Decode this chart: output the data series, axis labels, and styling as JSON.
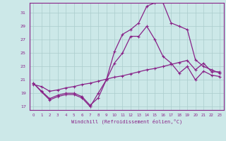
{
  "background_color": "#cce8e8",
  "grid_color": "#aacccc",
  "line_color": "#882288",
  "xlabel": "Windchill (Refroidissement éolien,°C)",
  "ylim": [
    16.5,
    32.5
  ],
  "xlim": [
    -0.5,
    23.5
  ],
  "yticks": [
    17,
    19,
    21,
    23,
    25,
    27,
    29,
    31
  ],
  "xticks": [
    0,
    1,
    2,
    3,
    4,
    5,
    6,
    7,
    8,
    9,
    10,
    11,
    12,
    13,
    14,
    15,
    16,
    17,
    18,
    19,
    20,
    21,
    22,
    23
  ],
  "line1_x": [
    0,
    1,
    2,
    3,
    4,
    5,
    6,
    7,
    8,
    9,
    10,
    11,
    12,
    13,
    14,
    15,
    16,
    17,
    18,
    19,
    20,
    21,
    22,
    23
  ],
  "line1_y": [
    20.3,
    20.0,
    19.3,
    19.5,
    19.8,
    20.0,
    20.3,
    20.5,
    20.8,
    21.1,
    21.4,
    21.6,
    21.9,
    22.2,
    22.5,
    22.7,
    23.0,
    23.3,
    23.6,
    23.9,
    22.5,
    23.5,
    22.2,
    22.2
  ],
  "line2_x": [
    0,
    1,
    2,
    3,
    4,
    5,
    6,
    7,
    8,
    9,
    10,
    11,
    12,
    13,
    14,
    15,
    16,
    17,
    18,
    19,
    20,
    21,
    22,
    23
  ],
  "line2_y": [
    20.5,
    19.2,
    18.0,
    18.5,
    18.8,
    18.8,
    18.3,
    17.0,
    19.0,
    21.0,
    23.5,
    25.0,
    27.5,
    27.5,
    29.0,
    27.0,
    24.5,
    23.5,
    22.0,
    23.0,
    21.0,
    22.3,
    21.7,
    21.5
  ],
  "line3_x": [
    0,
    1,
    2,
    3,
    4,
    5,
    6,
    7,
    8,
    9,
    10,
    11,
    12,
    13,
    14,
    15,
    16,
    17,
    18,
    19,
    20,
    21,
    22,
    23
  ],
  "line3_y": [
    20.5,
    19.3,
    18.2,
    18.7,
    19.0,
    19.0,
    18.5,
    17.2,
    18.3,
    21.0,
    25.2,
    27.8,
    28.5,
    29.5,
    32.0,
    32.5,
    32.5,
    29.5,
    29.0,
    28.5,
    24.0,
    23.0,
    22.5,
    22.0
  ]
}
